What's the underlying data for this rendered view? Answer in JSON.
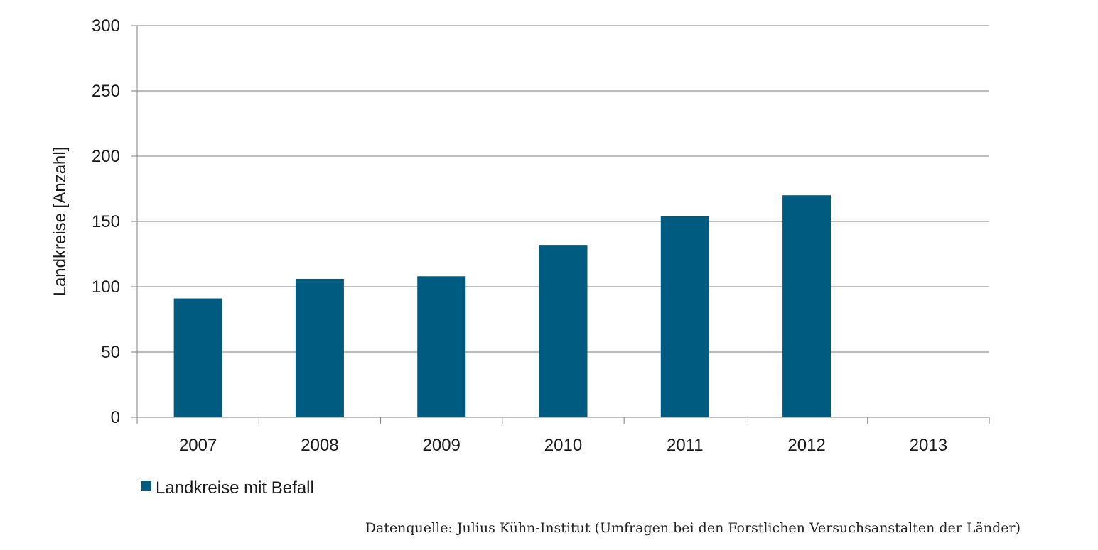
{
  "chart_data": {
    "type": "bar",
    "categories": [
      "2007",
      "2008",
      "2009",
      "2010",
      "2011",
      "2012",
      "2013"
    ],
    "series": [
      {
        "name": "Landkreise mit Befall",
        "values": [
          91,
          106,
          108,
          132,
          154,
          170,
          null
        ],
        "color": "#005b80"
      }
    ],
    "xlabel": "",
    "ylabel": "Landkreise [Anzahl]",
    "ylim": [
      0,
      300
    ],
    "yticks": [
      "0",
      "50",
      "100",
      "150",
      "200",
      "250",
      "300"
    ],
    "ytick_values": [
      0,
      50,
      100,
      150,
      200,
      250,
      300
    ],
    "grid": true,
    "legend_position": "bottom-left",
    "source_note": "Datenquelle: Julius Kühn-Institut (Umfragen bei den Forstlichen Versuchsanstalten der Länder)",
    "colors": {
      "bar": "#005b80",
      "grid": "#7f7f7f",
      "axis": "#7f7f7f"
    }
  }
}
